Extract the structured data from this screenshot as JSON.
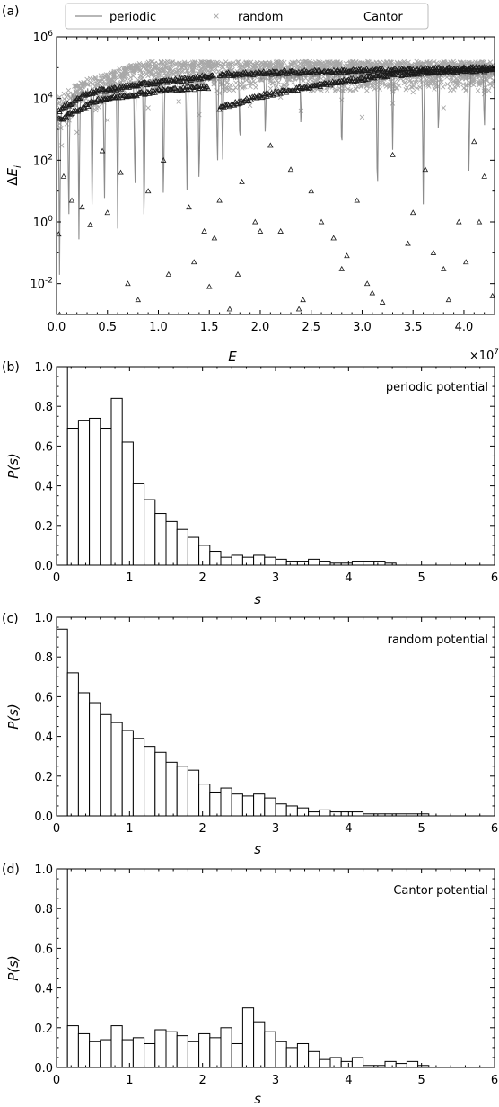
{
  "chart_data": [
    {
      "panel": "(a)",
      "type": "scatter",
      "xlabel": "E",
      "ylabel": "ΔE_i",
      "x_multiplier": "×10^7",
      "xlim": [
        0,
        4.3
      ],
      "ylim_log10": [
        -3,
        6
      ],
      "yscale": "log",
      "xticks": [
        "0.0",
        "0.5",
        "1.0",
        "1.5",
        "2.0",
        "2.5",
        "3.0",
        "3.5",
        "4.0"
      ],
      "yticks": [
        "10^-2",
        "10^0",
        "10^2",
        "10^4",
        "10^6"
      ],
      "legend_position": "top",
      "colors": {
        "periodic": "#8c8c8c",
        "random": "#a8a8a8",
        "cantor": "#1a1a1a"
      },
      "series": [
        {
          "name": "periodic",
          "marker": "line",
          "envelope": [
            [
              0.02,
              5000
            ],
            [
              0.1,
              12000
            ],
            [
              0.3,
              22000
            ],
            [
              0.6,
              32000
            ],
            [
              0.9,
              42000
            ],
            [
              1.2,
              52000
            ],
            [
              1.55,
              65000
            ],
            [
              1.6,
              68000
            ],
            [
              2.0,
              72000
            ],
            [
              2.5,
              78000
            ],
            [
              3.0,
              82000
            ],
            [
              3.5,
              88000
            ],
            [
              4.0,
              92000
            ],
            [
              4.3,
              95000
            ]
          ],
          "dips": [
            [
              0.03,
              0.01
            ],
            [
              0.12,
              0.3
            ],
            [
              0.22,
              0.2
            ],
            [
              0.35,
              0.8
            ],
            [
              0.47,
              1.5
            ],
            [
              0.6,
              0.5
            ],
            [
              0.77,
              2.5
            ],
            [
              0.86,
              0.1
            ],
            [
              1.05,
              1.0
            ],
            [
              1.28,
              3.0
            ],
            [
              1.4,
              3.0
            ],
            [
              1.58,
              20
            ],
            [
              1.63,
              50
            ],
            [
              1.8,
              100
            ],
            [
              2.05,
              300
            ],
            [
              2.4,
              600
            ],
            [
              2.8,
              50
            ],
            [
              3.15,
              1
            ],
            [
              3.3,
              200
            ],
            [
              3.6,
              2
            ],
            [
              3.75,
              300
            ],
            [
              4.05,
              10
            ],
            [
              4.2,
              500
            ]
          ]
        },
        {
          "name": "random",
          "marker": "x",
          "y_band": [
            400,
            150000
          ],
          "points": [
            [
              0.05,
              300
            ],
            [
              0.1,
              1500
            ],
            [
              0.2,
              800
            ],
            [
              0.3,
              6000
            ],
            [
              0.4,
              25000
            ],
            [
              0.5,
              2000
            ],
            [
              0.6,
              30000
            ],
            [
              0.7,
              12000
            ],
            [
              0.8,
              40000
            ],
            [
              0.9,
              5000
            ],
            [
              1.0,
              60000
            ],
            [
              1.1,
              20000
            ],
            [
              1.2,
              8000
            ],
            [
              1.3,
              45000
            ],
            [
              1.4,
              3000
            ],
            [
              1.5,
              70000
            ],
            [
              1.6,
              15000
            ],
            [
              1.7,
              90000
            ],
            [
              1.8,
              25000
            ],
            [
              1.9,
              6000
            ],
            [
              2.0,
              100000
            ],
            [
              2.1,
              35000
            ],
            [
              2.2,
              11000
            ],
            [
              2.3,
              120000
            ],
            [
              2.4,
              4000
            ],
            [
              2.5,
              60000
            ],
            [
              2.6,
              18000
            ],
            [
              2.7,
              140000
            ],
            [
              2.8,
              9000
            ],
            [
              2.9,
              55000
            ],
            [
              3.0,
              2500
            ],
            [
              3.1,
              110000
            ],
            [
              3.2,
              30000
            ],
            [
              3.3,
              7000
            ],
            [
              3.4,
              90000
            ],
            [
              3.5,
              16000
            ],
            [
              3.6,
              130000
            ],
            [
              3.7,
              40000
            ],
            [
              3.8,
              5000
            ],
            [
              3.9,
              100000
            ],
            [
              4.0,
              22000
            ],
            [
              4.1,
              65000
            ],
            [
              4.2,
              14000
            ],
            [
              4.25,
              110000
            ]
          ]
        },
        {
          "name": "Cantor",
          "marker": "triangle",
          "branches": [
            [
              [
                0.02,
                4000
              ],
              [
                0.3,
                15000
              ],
              [
                0.8,
                28000
              ],
              [
                1.2,
                40000
              ],
              [
                1.55,
                55000
              ]
            ],
            [
              [
                0.02,
                2000
              ],
              [
                0.4,
                9000
              ],
              [
                1.0,
                18000
              ],
              [
                1.5,
                24000
              ]
            ],
            [
              [
                1.6,
                60000
              ],
              [
                2.2,
                70000
              ],
              [
                3.0,
                80000
              ],
              [
                3.8,
                90000
              ],
              [
                4.3,
                98000
              ]
            ],
            [
              [
                1.6,
                5000
              ],
              [
                2.0,
                12000
              ],
              [
                2.4,
                22000
              ],
              [
                2.8,
                35000
              ],
              [
                3.2,
                55000
              ],
              [
                3.6,
                70000
              ],
              [
                4.0,
                80000
              ],
              [
                4.3,
                85000
              ]
            ]
          ],
          "points": [
            [
              0.02,
              0.4
            ],
            [
              0.03,
              0.001
            ],
            [
              0.07,
              30
            ],
            [
              0.15,
              5
            ],
            [
              0.25,
              3
            ],
            [
              0.33,
              0.8
            ],
            [
              0.45,
              200
            ],
            [
              0.5,
              2
            ],
            [
              0.63,
              40
            ],
            [
              0.7,
              0.01
            ],
            [
              0.8,
              0.003
            ],
            [
              0.9,
              10
            ],
            [
              1.05,
              100
            ],
            [
              1.1,
              0.02
            ],
            [
              1.3,
              3
            ],
            [
              1.35,
              0.05
            ],
            [
              1.45,
              0.5
            ],
            [
              1.5,
              0.008
            ],
            [
              1.55,
              0.3
            ],
            [
              1.6,
              5
            ],
            [
              1.7,
              0.0015
            ],
            [
              1.78,
              0.02
            ],
            [
              1.82,
              20
            ],
            [
              1.95,
              1
            ],
            [
              2.0,
              0.5
            ],
            [
              2.1,
              300
            ],
            [
              2.2,
              0.5
            ],
            [
              2.3,
              50
            ],
            [
              2.38,
              0.0015
            ],
            [
              2.42,
              0.003
            ],
            [
              2.5,
              10
            ],
            [
              2.6,
              1
            ],
            [
              2.72,
              0.3
            ],
            [
              2.8,
              0.03
            ],
            [
              2.85,
              0.08
            ],
            [
              2.95,
              5
            ],
            [
              3.05,
              0.01
            ],
            [
              3.1,
              0.005
            ],
            [
              3.2,
              0.0025
            ],
            [
              3.3,
              150
            ],
            [
              3.45,
              0.2
            ],
            [
              3.5,
              2
            ],
            [
              3.62,
              50
            ],
            [
              3.7,
              0.1
            ],
            [
              3.8,
              0.03
            ],
            [
              3.85,
              0.003
            ],
            [
              3.95,
              1
            ],
            [
              4.02,
              0.05
            ],
            [
              4.1,
              400
            ],
            [
              4.15,
              1
            ],
            [
              4.2,
              30
            ],
            [
              4.28,
              0.004
            ]
          ]
        }
      ]
    },
    {
      "panel": "(b)",
      "type": "bar",
      "annotation": "periodic potential",
      "xlabel": "s",
      "ylabel": "P(s)",
      "xlim": [
        0,
        6
      ],
      "ylim": [
        0,
        1.0
      ],
      "xticks": [
        "0",
        "1",
        "2",
        "3",
        "4",
        "5",
        "6"
      ],
      "yticks": [
        "0.0",
        "0.2",
        "0.4",
        "0.6",
        "0.8",
        "1.0"
      ],
      "bin_width": 0.15,
      "values": [
        1.0,
        0.69,
        0.73,
        0.74,
        0.69,
        0.84,
        0.62,
        0.41,
        0.33,
        0.26,
        0.22,
        0.18,
        0.14,
        0.1,
        0.07,
        0.04,
        0.05,
        0.04,
        0.05,
        0.04,
        0.03,
        0.02,
        0.02,
        0.03,
        0.02,
        0.01,
        0.01,
        0.02,
        0.02,
        0.02,
        0.01,
        0.0,
        0.0,
        0.0,
        0.0,
        0.0,
        0.0,
        0.0,
        0.0,
        0.0
      ]
    },
    {
      "panel": "(c)",
      "type": "bar",
      "annotation": "random potential",
      "xlabel": "s",
      "ylabel": "P(s)",
      "xlim": [
        0,
        6
      ],
      "ylim": [
        0,
        1.0
      ],
      "xticks": [
        "0",
        "1",
        "2",
        "3",
        "4",
        "5",
        "6"
      ],
      "yticks": [
        "0.0",
        "0.2",
        "0.4",
        "0.6",
        "0.8",
        "1.0"
      ],
      "bin_width": 0.15,
      "values": [
        0.94,
        0.72,
        0.62,
        0.57,
        0.51,
        0.47,
        0.43,
        0.39,
        0.35,
        0.32,
        0.27,
        0.25,
        0.23,
        0.16,
        0.12,
        0.14,
        0.11,
        0.1,
        0.11,
        0.09,
        0.06,
        0.05,
        0.04,
        0.02,
        0.03,
        0.02,
        0.02,
        0.02,
        0.01,
        0.01,
        0.01,
        0.01,
        0.01,
        0.01,
        0.0,
        0.0,
        0.0,
        0.0,
        0.0,
        0.0
      ]
    },
    {
      "panel": "(d)",
      "type": "bar",
      "annotation": "Cantor potential",
      "xlabel": "s",
      "ylabel": "P(s)",
      "xlim": [
        0,
        6
      ],
      "ylim": [
        0,
        1.0
      ],
      "xticks": [
        "0",
        "1",
        "2",
        "3",
        "4",
        "5",
        "6"
      ],
      "yticks": [
        "0.0",
        "0.2",
        "0.4",
        "0.6",
        "0.8",
        "1.0"
      ],
      "bin_width": 0.15,
      "values": [
        1.0,
        0.21,
        0.17,
        0.13,
        0.14,
        0.21,
        0.14,
        0.15,
        0.12,
        0.19,
        0.18,
        0.16,
        0.13,
        0.17,
        0.15,
        0.2,
        0.12,
        0.3,
        0.23,
        0.18,
        0.13,
        0.1,
        0.12,
        0.08,
        0.04,
        0.05,
        0.03,
        0.05,
        0.01,
        0.01,
        0.03,
        0.02,
        0.03,
        0.01,
        0.0,
        0.0,
        0.0,
        0.0,
        0.0,
        0.0
      ]
    }
  ]
}
